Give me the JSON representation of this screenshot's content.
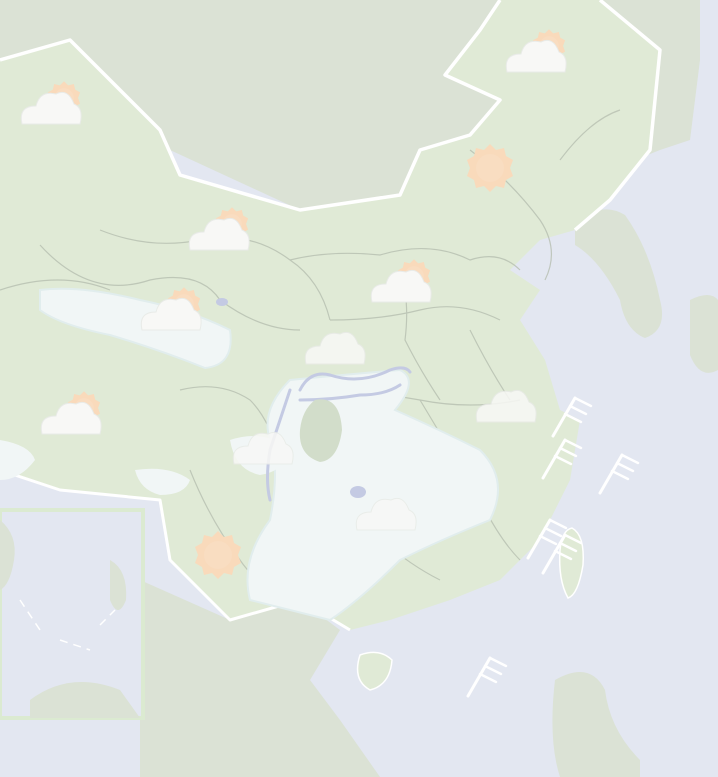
{
  "map": {
    "style": "pale-terrain-weather-map",
    "colors": {
      "sea": "#dde2ee",
      "land_china": "#d9e6cd",
      "land_neighbor": "#d3dccc",
      "border": "#ffffff",
      "province_line": "#a7b1a0",
      "rain_area": "#eef5f4",
      "rain_area_edge": "#dbe9ea",
      "river": "#b7bfdd",
      "sun": "#f8d2ad",
      "cloud": "#f7f7f4",
      "wind": "#ffffff"
    },
    "weather_icons": [
      {
        "name": "partly-cloudy-icon",
        "region": "northwest"
      },
      {
        "name": "partly-cloudy-icon",
        "region": "northeast"
      },
      {
        "name": "sunny-icon",
        "region": "inner-mongolia-east"
      },
      {
        "name": "partly-cloudy-icon",
        "region": "gansu"
      },
      {
        "name": "partly-cloudy-icon",
        "region": "north-china"
      },
      {
        "name": "partly-cloudy-icon",
        "region": "qinghai"
      },
      {
        "name": "cloudy-icon",
        "region": "central-china"
      },
      {
        "name": "partly-cloudy-icon",
        "region": "tibet"
      },
      {
        "name": "cloudy-icon",
        "region": "east-china"
      },
      {
        "name": "cloudy-icon",
        "region": "sichuan"
      },
      {
        "name": "cloudy-icon",
        "region": "south-china"
      },
      {
        "name": "sunny-icon",
        "region": "yunnan"
      }
    ],
    "wind_symbols": [
      "wind-barb-icon",
      "wind-barb-icon",
      "wind-barb-icon",
      "wind-barb-icon",
      "wind-barb-icon",
      "wind-barb-icon"
    ],
    "inset": {
      "name": "south-china-sea-inset"
    }
  }
}
